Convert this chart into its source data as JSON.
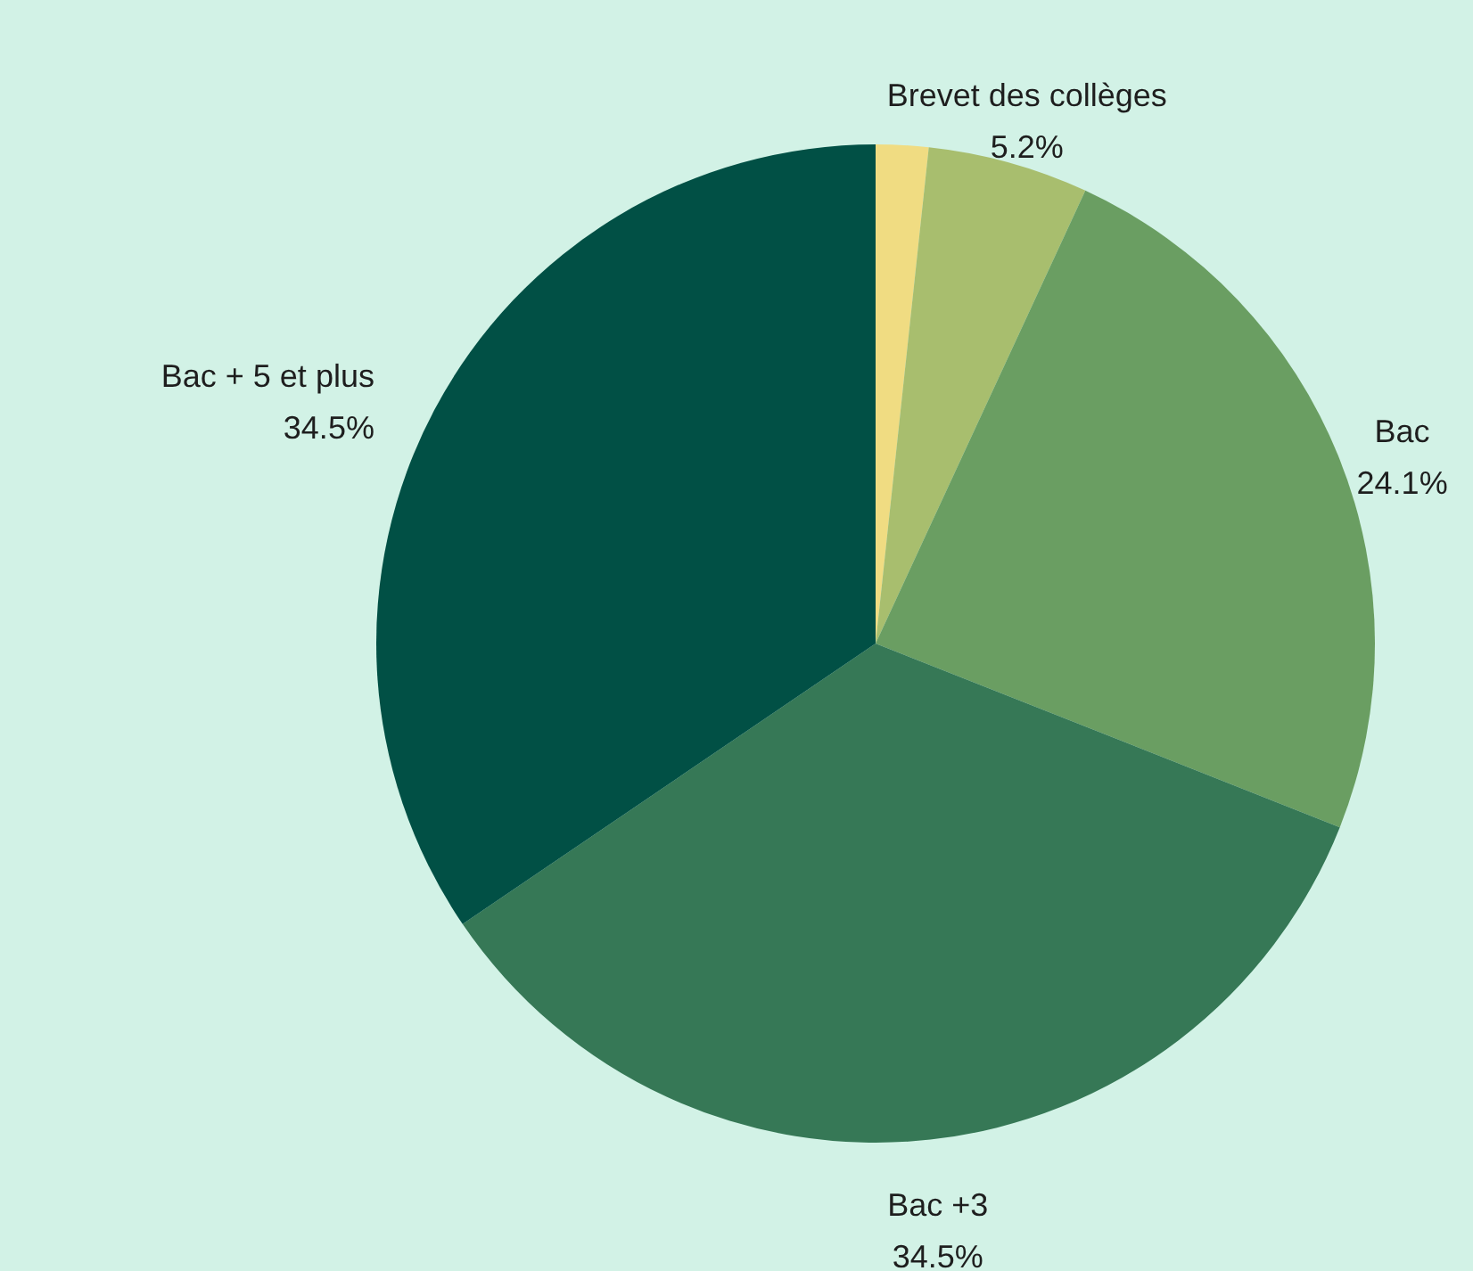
{
  "chart_data": {
    "type": "pie",
    "categories": [
      null,
      "Brevet des collèges",
      "Bac",
      "Bac +3",
      "Bac + 5 et plus"
    ],
    "values": [
      1.7,
      5.2,
      24.1,
      34.5,
      34.5
    ],
    "value_labels": [
      null,
      "5.2%",
      "24.1%",
      "34.5%",
      "34.5%"
    ],
    "colors": [
      "#f0dc82",
      "#a8be6e",
      "#6a9e62",
      "#367856",
      "#015045"
    ]
  }
}
